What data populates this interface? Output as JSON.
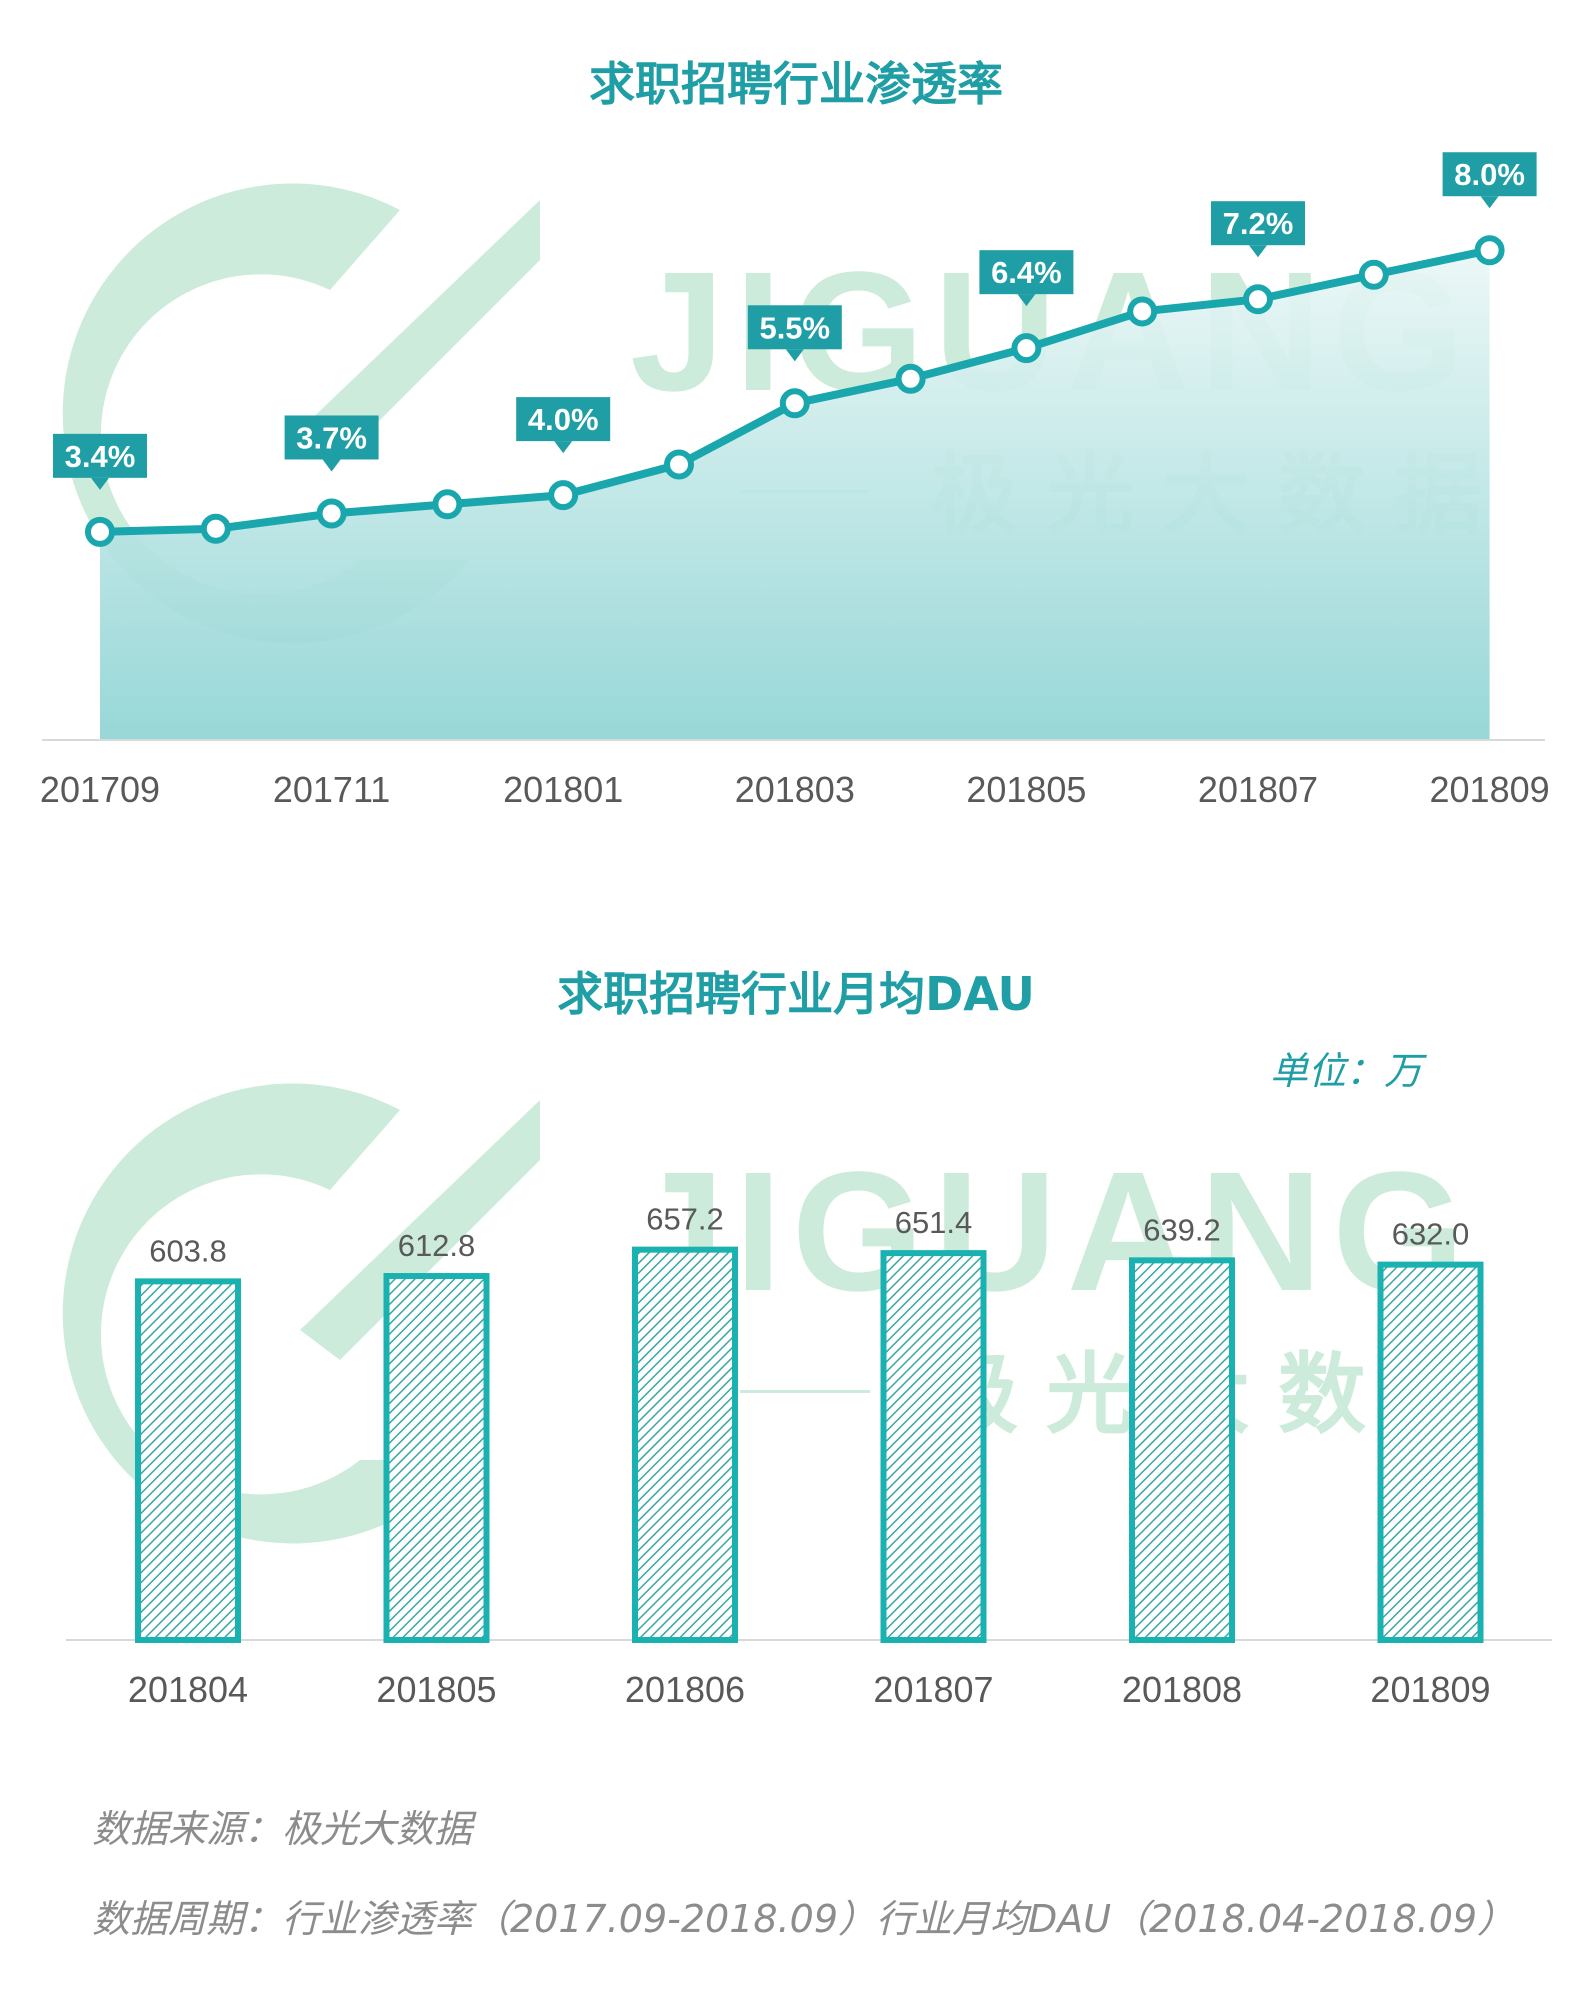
{
  "watermark": {
    "brand": "JIGUANG",
    "subtitle": "极光大数据"
  },
  "colors": {
    "accent": "#1f9ea5",
    "line": "#19a6ac",
    "watermark": "#cdebdb",
    "axis": "#d9d9d9",
    "tick_text": "#595959"
  },
  "chart_data": [
    {
      "type": "line",
      "title": "求职招聘行业渗透率",
      "x": [
        "201709",
        "201710",
        "201711",
        "201712",
        "201801",
        "201802",
        "201803",
        "201804",
        "201805",
        "201806",
        "201807",
        "201808",
        "201809"
      ],
      "xtick_labels": [
        "201709",
        "201711",
        "201801",
        "201803",
        "201805",
        "201807",
        "201809"
      ],
      "values": [
        3.4,
        3.45,
        3.7,
        3.85,
        4.0,
        4.5,
        5.5,
        5.9,
        6.4,
        7.0,
        7.2,
        7.6,
        8.0
      ],
      "data_labels": [
        {
          "index": 0,
          "text": "3.4%"
        },
        {
          "index": 2,
          "text": "3.7%"
        },
        {
          "index": 4,
          "text": "4.0%"
        },
        {
          "index": 6,
          "text": "5.5%"
        },
        {
          "index": 8,
          "text": "6.4%"
        },
        {
          "index": 10,
          "text": "7.2%"
        },
        {
          "index": 12,
          "text": "8.0%"
        }
      ],
      "ylim": [
        0,
        9
      ],
      "grid": false,
      "fill": "area-gradient"
    },
    {
      "type": "bar",
      "title": "求职招聘行业月均DAU",
      "unit_label": "单位：万",
      "categories": [
        "201804",
        "201805",
        "201806",
        "201807",
        "201808",
        "201809"
      ],
      "values": [
        603.8,
        612.8,
        657.2,
        651.4,
        639.2,
        632.0
      ],
      "value_labels": [
        "603.8",
        "612.8",
        "657.2",
        "651.4",
        "639.2",
        "632.0"
      ],
      "ylim": [
        0,
        660
      ],
      "grid": false,
      "bar_style": "hatched"
    }
  ],
  "footer": {
    "source": "数据来源：极光大数据",
    "period": "数据周期：行业渗透率（2017.09-2018.09）行业月均DAU（2018.04-2018.09）"
  }
}
